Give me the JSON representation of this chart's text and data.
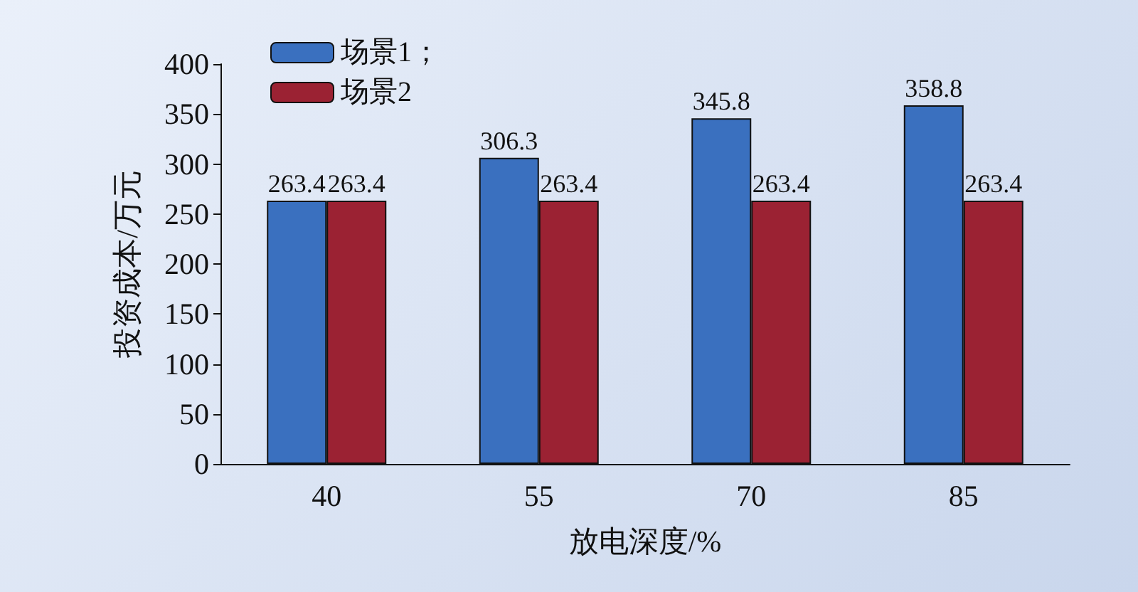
{
  "chart_data": {
    "type": "bar",
    "xlabel": "放电深度/%",
    "ylabel": "投资成本/万元",
    "categories": [
      "40",
      "55",
      "70",
      "85"
    ],
    "series": [
      {
        "name": "场景1；",
        "color": "#3a70bf",
        "values": [
          263.4,
          306.3,
          345.8,
          358.8
        ]
      },
      {
        "name": "场景2",
        "color": "#9b2233",
        "values": [
          263.4,
          263.4,
          263.4,
          263.4
        ]
      }
    ],
    "ylim": [
      0,
      400
    ],
    "yticks": [
      0,
      50,
      100,
      150,
      200,
      250,
      300,
      350,
      400
    ],
    "data_labels": true,
    "grid": false,
    "legend": "top left"
  }
}
